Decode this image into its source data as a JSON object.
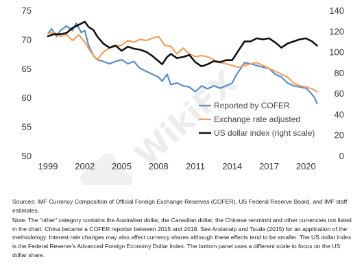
{
  "chart_data": {
    "type": "line",
    "title": "",
    "xlabel": "",
    "ylabel": "",
    "x_ticks": [
      "1999",
      "2002",
      "2005",
      "2008",
      "2011",
      "2014",
      "2017",
      "2020"
    ],
    "x_range": [
      1999.0,
      2021.1
    ],
    "ylim_left": [
      50,
      75
    ],
    "y_ticks_left": [
      50,
      55,
      60,
      65,
      70,
      75
    ],
    "ylim_right": [
      0,
      140
    ],
    "y_ticks_right": [
      0,
      20,
      40,
      60,
      80,
      100,
      120,
      140
    ],
    "grid": false,
    "legend_position": "bottom-right",
    "series": [
      {
        "name": "Reported by COFER",
        "axis": "left",
        "color": "#5b8cc0",
        "x": [
          1999.0,
          1999.3,
          1999.7,
          2000.0,
          2000.5,
          2001.0,
          2001.3,
          2001.7,
          2002.0,
          2002.3,
          2002.7,
          2003.0,
          2003.5,
          2004.0,
          2004.5,
          2005.0,
          2005.5,
          2006.0,
          2006.5,
          2007.0,
          2007.5,
          2008.0,
          2008.3,
          2008.7,
          2009.0,
          2009.5,
          2010.0,
          2010.5,
          2011.0,
          2011.5,
          2012.0,
          2012.5,
          2013.0,
          2013.5,
          2014.0,
          2014.3,
          2014.7,
          2015.0,
          2015.5,
          2016.0,
          2016.5,
          2017.0,
          2017.5,
          2018.0,
          2018.5,
          2019.0,
          2019.5,
          2020.0,
          2020.3,
          2020.7,
          2020.9
        ],
        "y": [
          71.0,
          71.8,
          70.5,
          71.5,
          72.3,
          71.5,
          72.8,
          71.2,
          71.5,
          69.0,
          67.2,
          66.5,
          66.2,
          65.8,
          66.2,
          66.5,
          65.8,
          66.2,
          65.0,
          64.5,
          64.0,
          63.5,
          62.8,
          64.0,
          62.2,
          62.5,
          62.0,
          61.8,
          61.0,
          62.0,
          61.5,
          62.0,
          61.6,
          62.0,
          62.5,
          63.8,
          65.0,
          66.0,
          65.8,
          65.5,
          65.2,
          65.0,
          64.0,
          63.5,
          62.5,
          62.0,
          61.8,
          61.6,
          61.0,
          60.0,
          59.0
        ]
      },
      {
        "name": "Exchange rate adjusted",
        "axis": "left",
        "color": "#f0a060",
        "x": [
          1999.0,
          1999.5,
          2000.0,
          2000.5,
          2001.0,
          2001.5,
          2002.0,
          2002.5,
          2003.0,
          2003.5,
          2004.0,
          2004.5,
          2005.0,
          2005.5,
          2006.0,
          2006.5,
          2007.0,
          2007.5,
          2008.0,
          2008.5,
          2009.0,
          2009.5,
          2010.0,
          2010.5,
          2011.0,
          2011.5,
          2012.0,
          2012.5,
          2013.0,
          2013.5,
          2014.0,
          2014.5,
          2015.0,
          2015.5,
          2016.0,
          2016.5,
          2017.0,
          2017.5,
          2018.0,
          2018.5,
          2019.0,
          2019.5,
          2020.0,
          2020.5,
          2020.9
        ],
        "y": [
          71.0,
          71.2,
          70.5,
          70.8,
          69.8,
          70.8,
          69.5,
          67.8,
          66.5,
          67.8,
          68.5,
          68.8,
          69.0,
          69.8,
          69.5,
          70.0,
          69.8,
          70.2,
          70.5,
          69.0,
          68.8,
          67.5,
          68.5,
          67.5,
          67.0,
          67.2,
          67.0,
          66.5,
          66.0,
          65.8,
          65.5,
          65.2,
          65.5,
          65.8,
          66.0,
          65.5,
          65.0,
          64.5,
          64.0,
          63.5,
          62.5,
          62.0,
          61.8,
          61.5,
          61.0
        ]
      },
      {
        "name": "US dollar index (right scale)",
        "axis": "right",
        "color": "#111111",
        "x": [
          1999.0,
          1999.5,
          2000.0,
          2000.5,
          2001.0,
          2001.5,
          2002.0,
          2002.3,
          2002.7,
          2003.0,
          2003.5,
          2004.0,
          2004.5,
          2005.0,
          2005.5,
          2006.0,
          2006.5,
          2007.0,
          2007.5,
          2008.0,
          2008.3,
          2008.7,
          2009.0,
          2009.5,
          2010.0,
          2010.5,
          2011.0,
          2011.5,
          2012.0,
          2012.5,
          2013.0,
          2013.5,
          2014.0,
          2014.5,
          2015.0,
          2015.5,
          2016.0,
          2016.5,
          2017.0,
          2017.5,
          2018.0,
          2018.5,
          2019.0,
          2019.5,
          2020.0,
          2020.5,
          2020.9
        ],
        "y": [
          115,
          117,
          117,
          118,
          123,
          126,
          129,
          124,
          121,
          115,
          108,
          104,
          106,
          101,
          105,
          103,
          102,
          100,
          96,
          91,
          88,
          95,
          98,
          94,
          95,
          97,
          90,
          86,
          88,
          91,
          90,
          92,
          92,
          101,
          110,
          110,
          113,
          112,
          113,
          109,
          104,
          108,
          110,
          112,
          113,
          110,
          106
        ]
      }
    ]
  },
  "watermark": "WikiFX",
  "notes": {
    "sources": "Sources: IMF Currency Composition of Official Foreign Exchange Reserves (COFER), US Federal Reserve Board, and IMF staff estimates.",
    "note": "Note: The “other” category contains the Australian dollar, the Canadian dollar, the Chinese renminbi and other currencies not listed in the chart. China became a COFER reporter between 2015 and 2018. See Arslanalp and Tsuda (2015) for an application of the methodology. Interest rate changes may also affect currency shares although these effects tend to be smaller. The US dollar index is the Federal Reserve’s Advanced Foreign Economy Dollar index. The bottom panel uses a different scale to focus on the US dollar share."
  }
}
